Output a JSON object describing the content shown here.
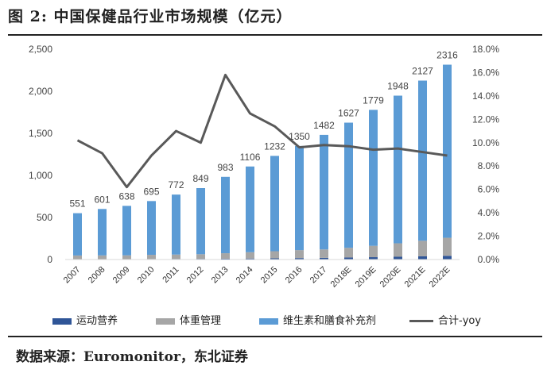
{
  "header": {
    "title": "图 2: 中国保健品行业市场规模（亿元）"
  },
  "footer": {
    "source": "数据来源：Euromonitor，东北证券"
  },
  "colors": {
    "sports": "#2f5597",
    "weight": "#a6a6a6",
    "vitamin": "#5b9bd5",
    "yoy": "#595959"
  },
  "legend": {
    "sports": "运动营养",
    "weight": "体重管理",
    "vitamin": "维生素和膳食补充剂",
    "yoy": "合计-yoy"
  },
  "chart_data": {
    "type": "bar",
    "stacked": true,
    "title": "中国保健品行业市场规模（亿元）",
    "categories": [
      "2007",
      "2008",
      "2009",
      "2010",
      "2011",
      "2012",
      "2013",
      "2014",
      "2015",
      "2016",
      "2017",
      "2018E",
      "2019E",
      "2020E",
      "2021E",
      "2022E"
    ],
    "totals": [
      551,
      601,
      638,
      695,
      772,
      849,
      983,
      1106,
      1232,
      1350,
      1482,
      1627,
      1779,
      1948,
      2127,
      2316
    ],
    "series": [
      {
        "name": "运动营养",
        "type": "bar",
        "axis": "left",
        "values": [
          3,
          4,
          5,
          6,
          7,
          8,
          10,
          12,
          14,
          17,
          20,
          24,
          28,
          33,
          38,
          44
        ]
      },
      {
        "name": "体重管理",
        "type": "bar",
        "axis": "left",
        "values": [
          45,
          45,
          45,
          50,
          52,
          55,
          65,
          75,
          85,
          95,
          100,
          115,
          135,
          160,
          185,
          215
        ]
      },
      {
        "name": "维生素和膳食补充剂",
        "type": "bar",
        "axis": "left",
        "values": [
          503,
          552,
          588,
          639,
          713,
          786,
          908,
          1019,
          1133,
          1238,
          1362,
          1488,
          1616,
          1755,
          1904,
          2057
        ]
      },
      {
        "name": "合计-yoy",
        "type": "line",
        "axis": "right",
        "values": [
          10.2,
          9.1,
          6.2,
          8.9,
          11.0,
          10.0,
          15.8,
          12.5,
          11.4,
          9.6,
          9.8,
          9.7,
          9.4,
          9.5,
          9.2,
          8.9
        ]
      }
    ],
    "ylim_left": [
      0,
      2500
    ],
    "yticks_left": [
      "0",
      "500",
      "1,000",
      "1,500",
      "2,000",
      "2,500"
    ],
    "yticks_left_values": [
      0,
      500,
      1000,
      1500,
      2000,
      2500
    ],
    "ylim_right": [
      0,
      18
    ],
    "yticks_right": [
      "0.0%",
      "2.0%",
      "4.0%",
      "6.0%",
      "8.0%",
      "10.0%",
      "12.0%",
      "14.0%",
      "16.0%",
      "18.0%"
    ],
    "yticks_right_values": [
      0,
      2,
      4,
      6,
      8,
      10,
      12,
      14,
      16,
      18
    ],
    "grid": false,
    "legend_position": "bottom"
  }
}
